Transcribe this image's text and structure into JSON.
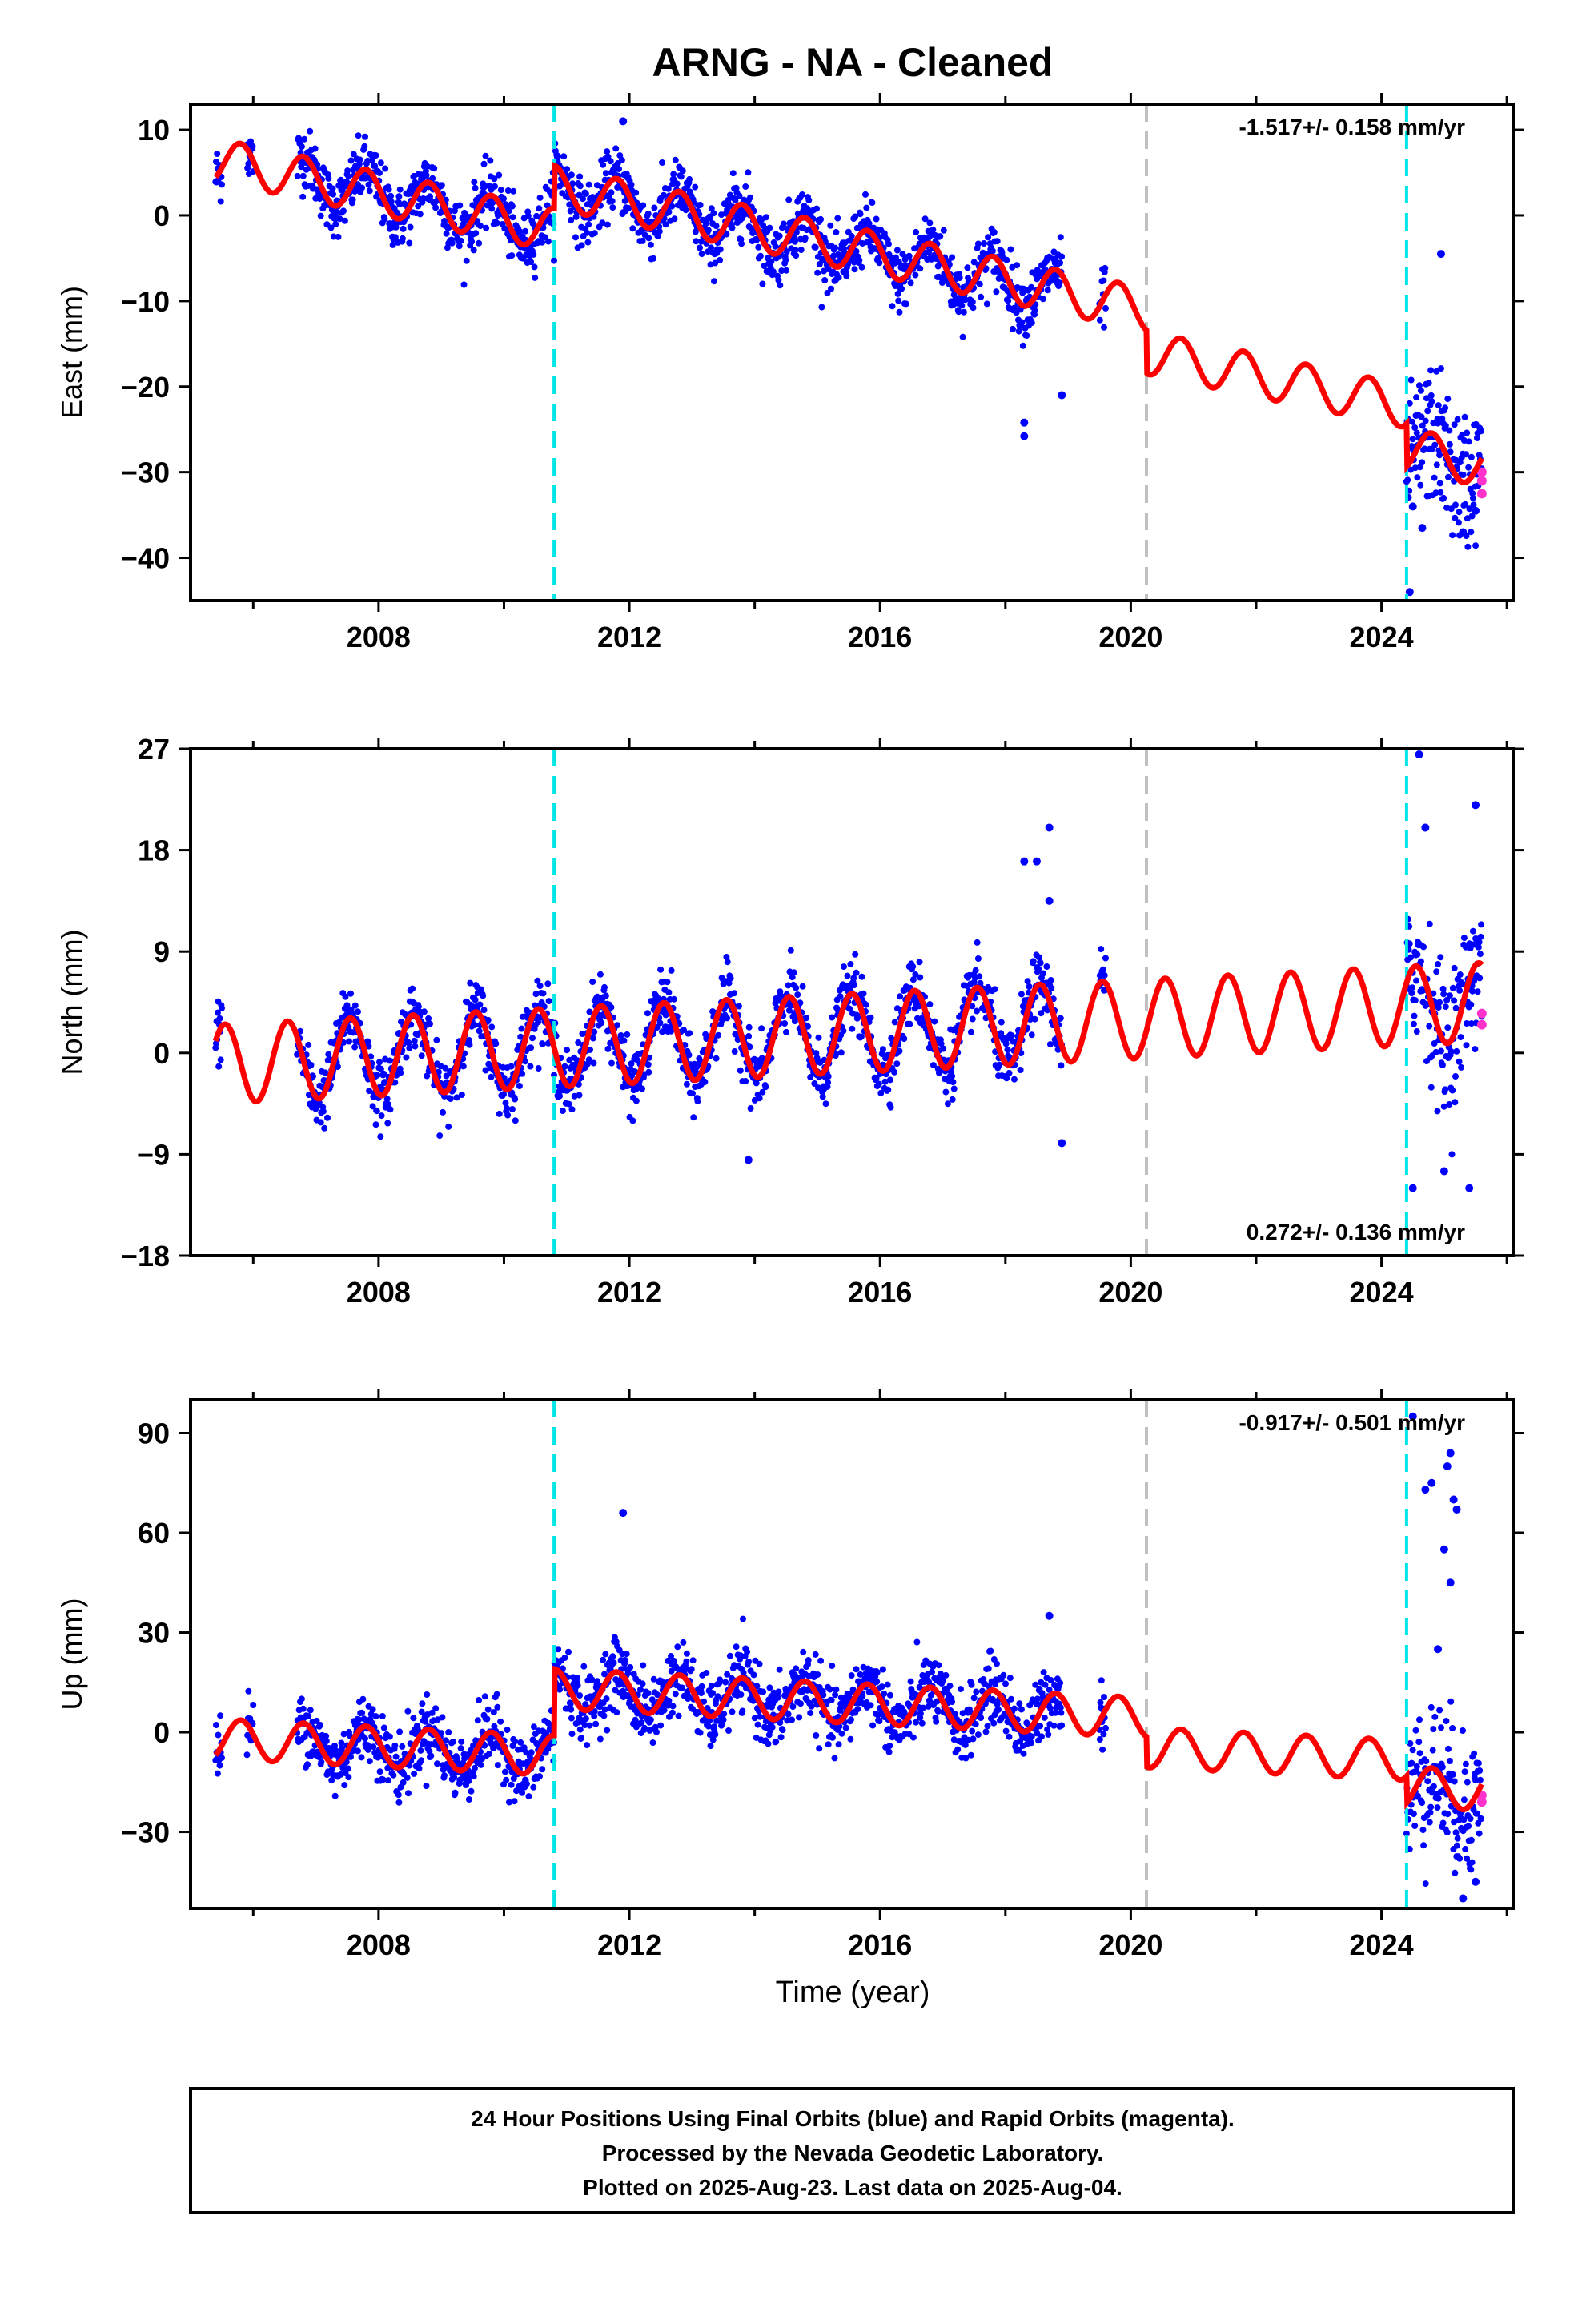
{
  "title": "ARNG  - NA - Cleaned",
  "xlabel": "Time (year)",
  "footer": {
    "lines": [
      "24 Hour Positions Using Final Orbits (blue) and Rapid Orbits (magenta).",
      "Processed by the Nevada Geodetic Laboratory.",
      "Plotted on 2025-Aug-23. Last data on 2025-Aug-04."
    ]
  },
  "colors": {
    "final_orbits": "#0000ff",
    "rapid_orbits": "#ff33cc",
    "model": "#ff0000",
    "equipment_change": "#00e5e5",
    "gap_marker": "#c0c0c0"
  },
  "chart_data": [
    {
      "type": "scatter",
      "component": "east",
      "ylabel": "East (mm)",
      "rate_label": "-1.517+/- 0.158 mm/yr",
      "rate_position": "top-right",
      "xlim": [
        2005.0,
        2026.1
      ],
      "ylim": [
        -45,
        13
      ],
      "x_ticks": [
        2008,
        2012,
        2016,
        2020,
        2024
      ],
      "y_ticks": [
        10,
        0,
        -10,
        -20,
        -30,
        -40
      ],
      "y_tick_labels": [
        "10",
        "0",
        "−10",
        "−20",
        "−30",
        "−40"
      ],
      "vlines": [
        {
          "x": 2010.8,
          "color": "cyan"
        },
        {
          "x": 2020.25,
          "color": "gray"
        },
        {
          "x": 2024.4,
          "color": "cyan"
        }
      ],
      "data_segments": [
        [
          2005.4,
          2005.5
        ],
        [
          2005.9,
          2006.0
        ],
        [
          2006.7,
          2018.9
        ],
        [
          2019.5,
          2019.6
        ],
        [
          2024.4,
          2025.6
        ]
      ],
      "model": {
        "start": 2005.4,
        "end": 2025.6,
        "start_value": 6.5,
        "rate": -1.517,
        "annual_amplitude": 2.5,
        "annual_phase_peak": 0.8,
        "offsets": [
          {
            "at": 2010.8,
            "jump": 5
          },
          {
            "at": 2020.25,
            "jump": -5
          },
          {
            "at": 2024.4,
            "jump": -5
          }
        ]
      },
      "scatter_noise": 1.8,
      "outliers": [
        [
          2011.9,
          11
        ],
        [
          2018.3,
          -25.8
        ],
        [
          2018.3,
          -24.2
        ],
        [
          2018.9,
          -21
        ],
        [
          2024.45,
          -44
        ],
        [
          2024.65,
          -36.5
        ],
        [
          2024.95,
          -4.5
        ],
        [
          2025.3,
          -37
        ],
        [
          2025.5,
          -34.5
        ],
        [
          2024.5,
          -34
        ]
      ],
      "rapid_points": [
        [
          2025.6,
          -30
        ],
        [
          2025.6,
          -31
        ],
        [
          2025.6,
          -32.5
        ]
      ]
    },
    {
      "type": "scatter",
      "component": "north",
      "ylabel": "North (mm)",
      "rate_label": "0.272+/- 0.136 mm/yr",
      "rate_position": "bottom-right",
      "xlim": [
        2005.0,
        2026.1
      ],
      "ylim": [
        -18,
        27
      ],
      "x_ticks": [
        2008,
        2012,
        2016,
        2020,
        2024
      ],
      "y_ticks": [
        27,
        18,
        9,
        0,
        -9,
        -18
      ],
      "y_tick_labels": [
        "27",
        "18",
        "9",
        "0",
        "−9",
        "−18"
      ],
      "vlines": [
        {
          "x": 2010.8,
          "color": "cyan"
        },
        {
          "x": 2020.25,
          "color": "gray"
        },
        {
          "x": 2024.4,
          "color": "cyan"
        }
      ],
      "data_segments": [
        [
          2005.4,
          2005.5
        ],
        [
          2006.7,
          2018.9
        ],
        [
          2019.5,
          2019.6
        ],
        [
          2024.4,
          2025.6
        ]
      ],
      "model": {
        "start": 2005.4,
        "end": 2025.6,
        "start_value": -1.0,
        "rate": 0.272,
        "annual_amplitude": 3.5,
        "annual_phase_peak": 0.55,
        "offsets": []
      },
      "scatter_noise": 1.4,
      "outliers": [
        [
          2018.3,
          17
        ],
        [
          2018.5,
          17
        ],
        [
          2018.7,
          20
        ],
        [
          2018.7,
          13.5
        ],
        [
          2024.6,
          26.5
        ],
        [
          2024.7,
          20
        ],
        [
          2025.0,
          -10.5
        ],
        [
          2025.4,
          -12
        ],
        [
          2025.5,
          22
        ],
        [
          2024.5,
          -12
        ],
        [
          2013.9,
          -9.5
        ],
        [
          2018.9,
          -8
        ]
      ],
      "rapid_points": [
        [
          2025.6,
          2.5
        ],
        [
          2025.6,
          3.5
        ]
      ]
    },
    {
      "type": "scatter",
      "component": "up",
      "ylabel": "Up (mm)",
      "rate_label": "-0.917+/- 0.501 mm/yr",
      "rate_position": "top-right",
      "xlim": [
        2005.0,
        2026.1
      ],
      "ylim": [
        -53,
        100
      ],
      "x_ticks": [
        2008,
        2012,
        2016,
        2020,
        2024
      ],
      "y_ticks": [
        90,
        60,
        30,
        0,
        -30
      ],
      "y_tick_labels": [
        "90",
        "60",
        "30",
        "0",
        "−30"
      ],
      "vlines": [
        {
          "x": 2010.8,
          "color": "cyan"
        },
        {
          "x": 2020.25,
          "color": "gray"
        },
        {
          "x": 2024.4,
          "color": "cyan"
        }
      ],
      "data_segments": [
        [
          2005.4,
          2005.5
        ],
        [
          2005.9,
          2006.0
        ],
        [
          2006.7,
          2018.9
        ],
        [
          2019.5,
          2019.6
        ],
        [
          2024.4,
          2025.6
        ]
      ],
      "model": {
        "start": 2005.4,
        "end": 2025.6,
        "start_value": -2,
        "rate": -0.917,
        "annual_amplitude": 6,
        "annual_phase_peak": 0.8,
        "offsets": [
          {
            "at": 2010.8,
            "jump": 20
          },
          {
            "at": 2020.25,
            "jump": -9
          },
          {
            "at": 2024.4,
            "jump": -8
          }
        ]
      },
      "scatter_noise": 5,
      "outliers": [
        [
          2011.9,
          66
        ],
        [
          2018.7,
          35
        ],
        [
          2024.5,
          95
        ],
        [
          2024.7,
          73
        ],
        [
          2024.8,
          75
        ],
        [
          2025.05,
          80
        ],
        [
          2025.1,
          84
        ],
        [
          2025.15,
          70
        ],
        [
          2025.2,
          67
        ],
        [
          2025.0,
          55
        ],
        [
          2025.1,
          45
        ],
        [
          2024.9,
          25
        ],
        [
          2025.3,
          -50
        ],
        [
          2025.5,
          -45
        ]
      ],
      "rapid_points": [
        [
          2025.6,
          -19
        ],
        [
          2025.6,
          -21
        ]
      ]
    }
  ]
}
